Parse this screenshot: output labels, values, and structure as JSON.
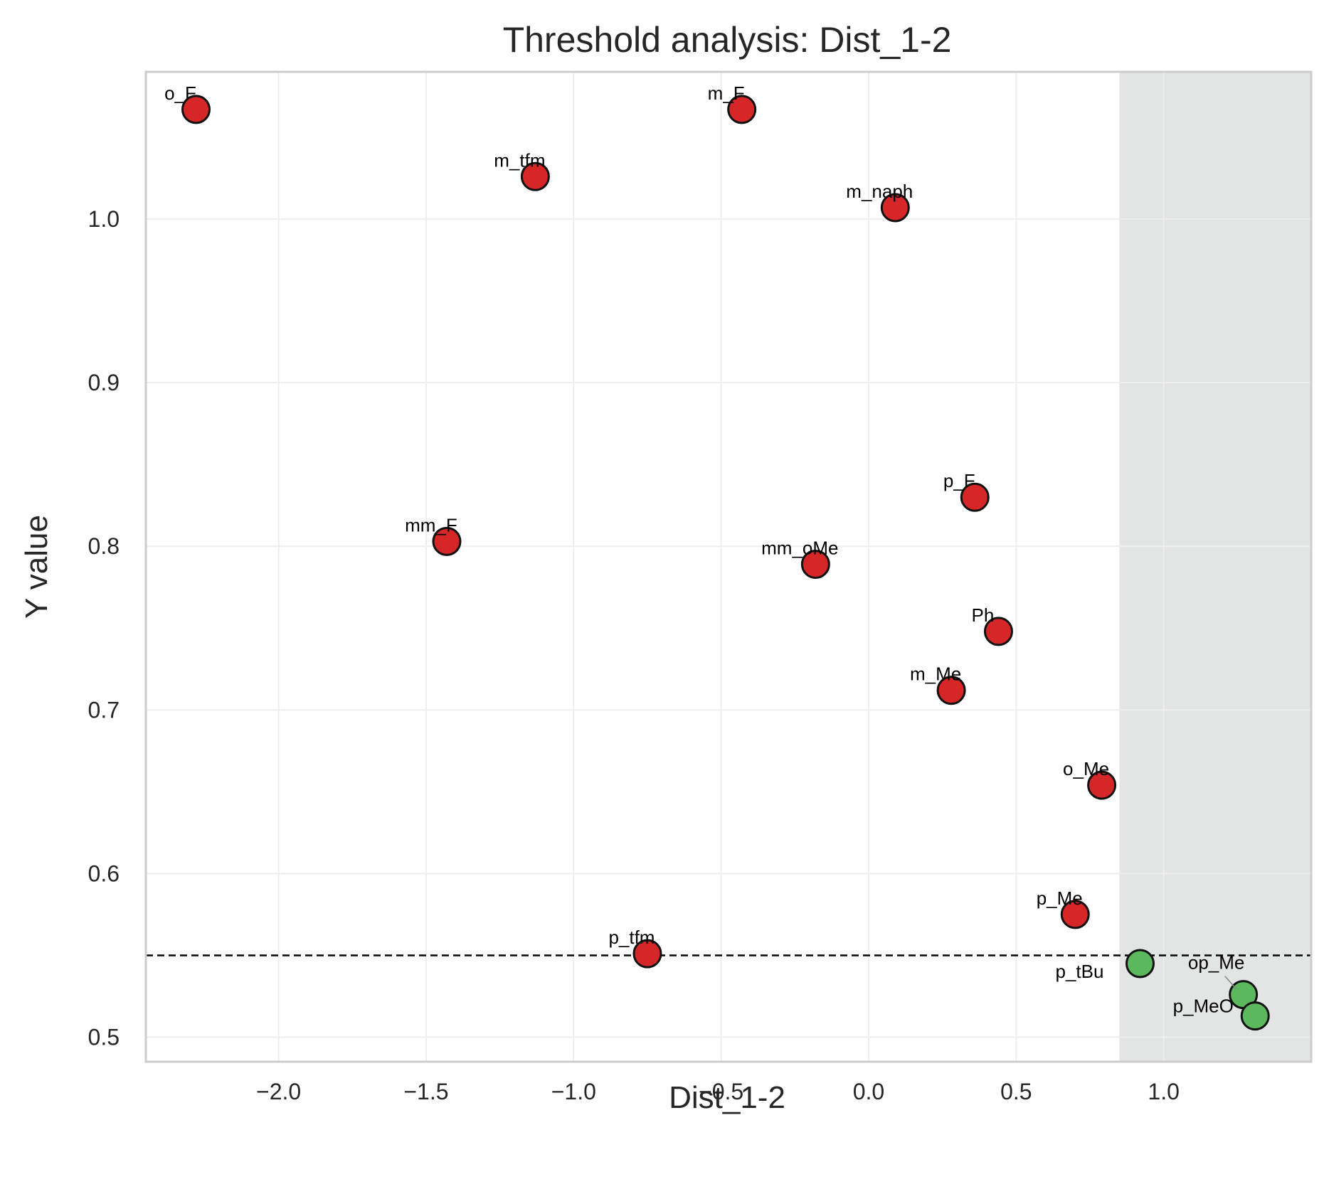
{
  "chart_data": {
    "type": "scatter",
    "title": "Threshold analysis: Dist_1-2",
    "xlabel": "Dist_1-2",
    "ylabel": "Y value",
    "xlim": [
      -2.45,
      1.5
    ],
    "ylim": [
      0.485,
      1.09
    ],
    "xticks": [
      -2.0,
      -1.5,
      -1.0,
      -0.5,
      0.0,
      0.5,
      1.0
    ],
    "xtick_labels": [
      "−2.0",
      "−1.5",
      "−1.0",
      "−0.5",
      "0.0",
      "0.5",
      "1.0"
    ],
    "yticks": [
      0.5,
      0.6,
      0.7,
      0.8,
      0.9,
      1.0
    ],
    "ytick_labels": [
      "0.5",
      "0.6",
      "0.7",
      "0.8",
      "0.9",
      "1.0"
    ],
    "grid": true,
    "threshold_y": 0.55,
    "shaded_x_from": 0.85,
    "colors": {
      "below_threshold_region": "#d62728",
      "above_threshold_region": "#5cb85c",
      "shade": "#e3e4e4",
      "grid": "#eeeeee",
      "frame": "#cccccc"
    },
    "points": [
      {
        "label": "o_F",
        "x": -2.28,
        "y": 1.067,
        "group": "red"
      },
      {
        "label": "m_F",
        "x": -0.43,
        "y": 1.067,
        "group": "red"
      },
      {
        "label": "m_tfm",
        "x": -1.13,
        "y": 1.026,
        "group": "red"
      },
      {
        "label": "m_naph",
        "x": 0.09,
        "y": 1.007,
        "group": "red"
      },
      {
        "label": "p_F",
        "x": 0.36,
        "y": 0.83,
        "group": "red"
      },
      {
        "label": "mm_F",
        "x": -1.43,
        "y": 0.803,
        "group": "red"
      },
      {
        "label": "mm_oMe",
        "x": -0.18,
        "y": 0.789,
        "group": "red"
      },
      {
        "label": "Ph",
        "x": 0.44,
        "y": 0.748,
        "group": "red"
      },
      {
        "label": "m_Me",
        "x": 0.28,
        "y": 0.712,
        "group": "red"
      },
      {
        "label": "o_Me",
        "x": 0.79,
        "y": 0.654,
        "group": "red"
      },
      {
        "label": "p_Me",
        "x": 0.7,
        "y": 0.575,
        "group": "red"
      },
      {
        "label": "p_tfm",
        "x": -0.75,
        "y": 0.551,
        "group": "red"
      },
      {
        "label": "p_tBu",
        "x": 0.92,
        "y": 0.545,
        "group": "green"
      },
      {
        "label": "op_Me",
        "x": 1.27,
        "y": 0.526,
        "group": "green"
      },
      {
        "label": "p_MeO",
        "x": 1.31,
        "y": 0.513,
        "group": "green"
      }
    ]
  }
}
